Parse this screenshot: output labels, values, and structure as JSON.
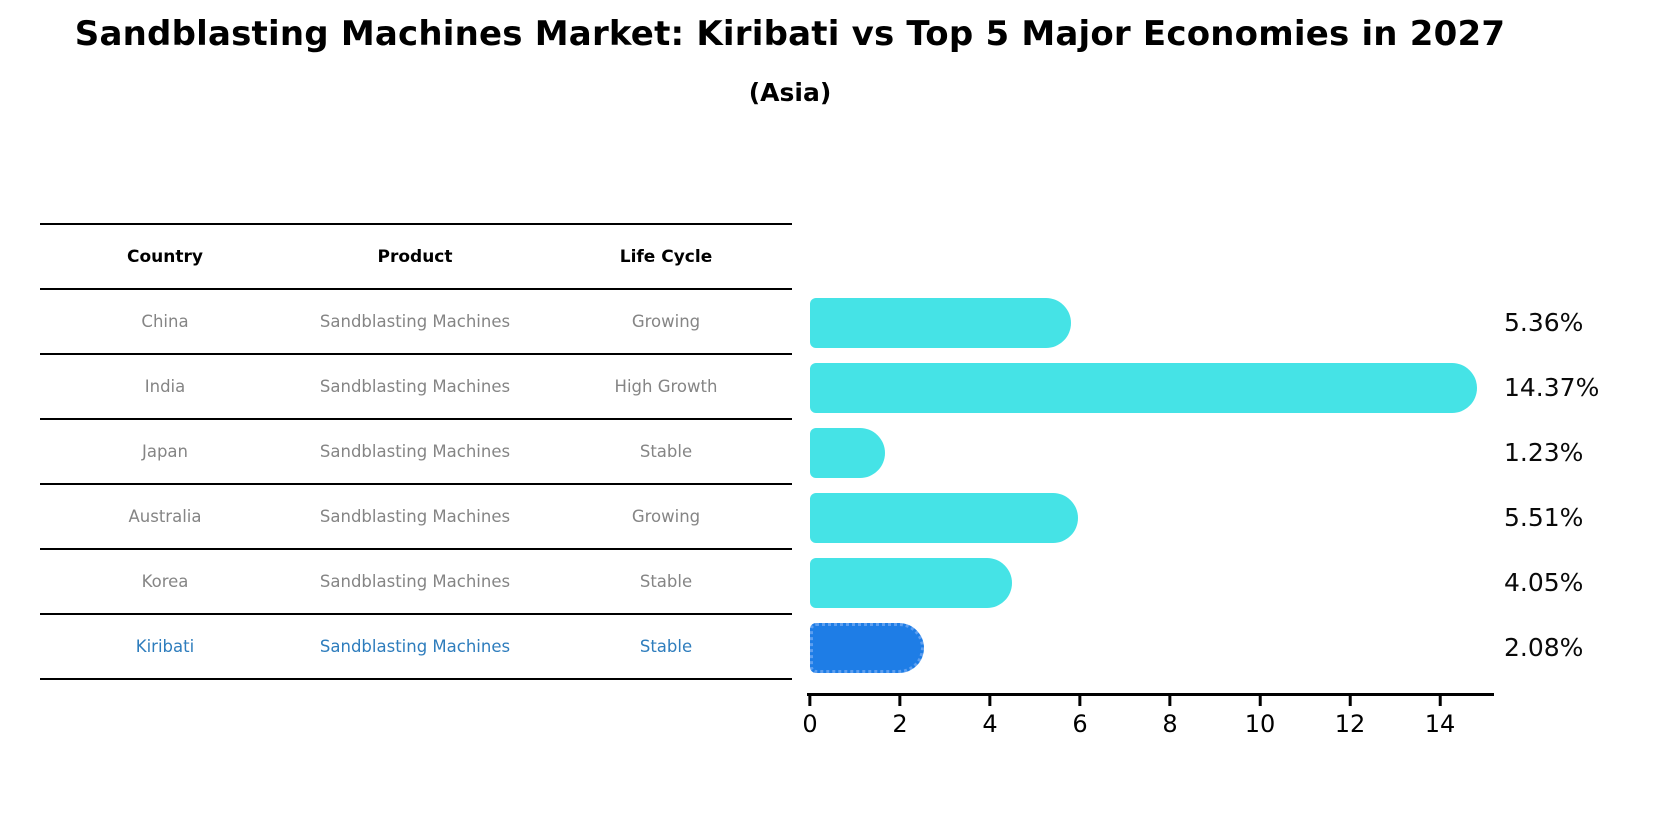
{
  "header": {
    "title": "Sandblasting Machines Market: Kiribati vs Top 5 Major Economies in 2027",
    "subtitle": "(Asia)"
  },
  "table": {
    "columns": [
      "Country",
      "Product",
      "Life Cycle"
    ],
    "rows": [
      {
        "country": "China",
        "product": "Sandblasting Machines",
        "life_cycle": "Growing",
        "highlight": false
      },
      {
        "country": "India",
        "product": "Sandblasting Machines",
        "life_cycle": "High Growth",
        "highlight": false
      },
      {
        "country": "Japan",
        "product": "Sandblasting Machines",
        "life_cycle": "Stable",
        "highlight": false
      },
      {
        "country": "Australia",
        "product": "Sandblasting Machines",
        "life_cycle": "Growing",
        "highlight": false
      },
      {
        "country": "Korea",
        "product": "Sandblasting Machines",
        "life_cycle": "Stable",
        "highlight": false
      },
      {
        "country": "Kiribati",
        "product": "Sandblasting Machines",
        "life_cycle": "Stable",
        "highlight": true
      }
    ]
  },
  "chart_data": {
    "type": "bar",
    "orientation": "horizontal",
    "title": "Sandblasting Machines Market: Kiribati vs Top 5 Major Economies in 2027",
    "subtitle": "(Asia)",
    "categories": [
      "China",
      "India",
      "Japan",
      "Australia",
      "Korea",
      "Kiribati"
    ],
    "values": [
      5.36,
      14.37,
      1.23,
      5.51,
      4.05,
      2.08
    ],
    "value_labels": [
      "5.36%",
      "14.37%",
      "1.23%",
      "5.51%",
      "4.05%",
      "2.08%"
    ],
    "x_ticks": [
      "0",
      "2",
      "4",
      "6",
      "8",
      "10",
      "12",
      "14"
    ],
    "x_tick_values": [
      0,
      2,
      4,
      6,
      8,
      10,
      12,
      14
    ],
    "xlim": [
      0,
      15.2
    ],
    "grid": false,
    "legend": "none",
    "bar_color": "#45e3e6",
    "highlight_bar_color": "#1e7de6",
    "highlight_border_color": "#5d9ff0",
    "highlight_text_color": "#2e7dbd",
    "highlight_index": 5
  }
}
